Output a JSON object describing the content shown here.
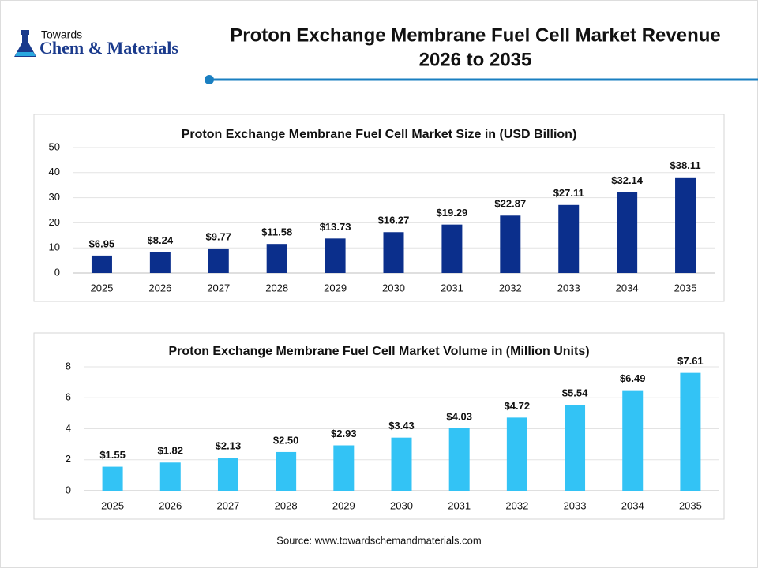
{
  "header": {
    "logo_top": "Towards",
    "logo_main": "Chem & Materials",
    "title": [
      "Proton Exchange Membrane Fuel Cell Market Revenue",
      "2026 to 2035"
    ]
  },
  "chart_data": [
    {
      "type": "bar",
      "title": "Proton Exchange Membrane Fuel Cell Market Size in (USD Billion)",
      "categories": [
        "2025",
        "2026",
        "2027",
        "2028",
        "2029",
        "2030",
        "2031",
        "2032",
        "2033",
        "2034",
        "2035"
      ],
      "values": [
        6.95,
        8.24,
        9.77,
        11.58,
        13.73,
        16.27,
        19.29,
        22.87,
        27.11,
        32.14,
        38.11
      ],
      "value_labels": [
        "$6.95",
        "$8.24",
        "$9.77",
        "$11.58",
        "$13.73",
        "$16.27",
        "$19.29",
        "$22.87",
        "$27.11",
        "$32.14",
        "$38.11"
      ],
      "color": "#0b2f8c",
      "ylim": [
        0,
        50
      ],
      "yticks": [
        0,
        10,
        20,
        30,
        40,
        50
      ],
      "grid": true
    },
    {
      "type": "bar",
      "title": "Proton Exchange Membrane Fuel Cell Market Volume in (Million Units)",
      "categories": [
        "2025",
        "2026",
        "2027",
        "2028",
        "2029",
        "2030",
        "2031",
        "2032",
        "2033",
        "2034",
        "2035"
      ],
      "values": [
        1.55,
        1.82,
        2.13,
        2.5,
        2.93,
        3.43,
        4.03,
        4.72,
        5.54,
        6.49,
        7.61
      ],
      "value_labels": [
        "$1.55",
        "$1.82",
        "$2.13",
        "$2.50",
        "$2.93",
        "$3.43",
        "$4.03",
        "$4.72",
        "$5.54",
        "$6.49",
        "$7.61"
      ],
      "color": "#33c3f5",
      "ylim": [
        0,
        8
      ],
      "yticks": [
        0,
        2,
        4,
        6,
        8
      ],
      "grid": true
    }
  ],
  "source": "Source: www.towardschemandmaterials.com"
}
